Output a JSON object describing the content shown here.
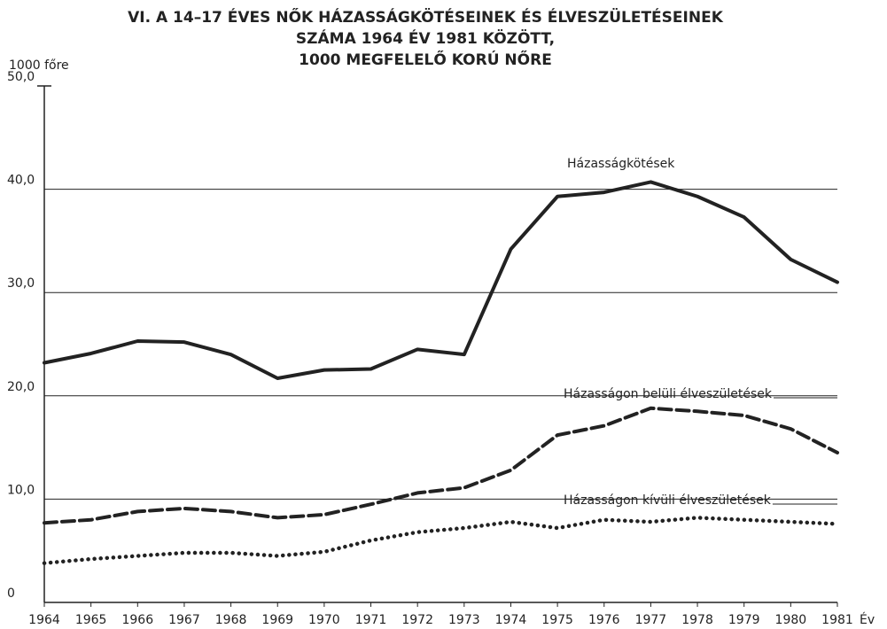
{
  "chart_data": {
    "type": "line",
    "title": [
      "VI. A 14–17 ÉVES NŐK HÁZASSÁGKÖTÉSEINEK ÉS ÉLVESZÜLETÉSEINEK",
      "SZÁMA 1964 ÉV 1981 KÖZÖTT,",
      "1000 MEGFELELŐ KORÚ NŐRE"
    ],
    "y_label": "1000 főre",
    "x_label": "Év",
    "x": [
      1964,
      1965,
      1966,
      1967,
      1968,
      1969,
      1970,
      1971,
      1972,
      1973,
      1974,
      1975,
      1976,
      1977,
      1978,
      1979,
      1980,
      1981
    ],
    "xlim": [
      1964,
      1981
    ],
    "xticks": [
      1964,
      1965,
      1966,
      1967,
      1968,
      1969,
      1970,
      1971,
      1972,
      1973,
      1974,
      1975,
      1976,
      1977,
      1978,
      1979,
      1980,
      1981
    ],
    "ylim": [
      0,
      50
    ],
    "yticks": [
      0,
      {
        "value": 10,
        "label": "10,0"
      },
      {
        "value": 20,
        "label": "20,0"
      },
      {
        "value": 30,
        "label": "30,0"
      },
      {
        "value": 40,
        "label": "40,0"
      },
      {
        "value": 50,
        "label": "50,0"
      }
    ],
    "grid": true,
    "series": [
      {
        "name": "Házasságkötések",
        "color": "#222222",
        "style": "solid",
        "values": [
          23.2,
          24.1,
          25.3,
          25.2,
          24.0,
          21.7,
          22.5,
          22.6,
          24.5,
          24.0,
          34.2,
          39.3,
          39.7,
          40.7,
          39.3,
          37.3,
          33.2,
          31.0
        ]
      },
      {
        "name": "Házasságon belüli élveszületések",
        "color": "#222222",
        "style": "dashed",
        "values": [
          7.7,
          8.0,
          8.8,
          9.1,
          8.8,
          8.2,
          8.5,
          9.5,
          10.6,
          11.1,
          12.8,
          16.2,
          17.1,
          18.8,
          18.5,
          18.1,
          16.8,
          14.5
        ]
      },
      {
        "name": "Házasságon kívüli élveszületések",
        "color": "#222222",
        "style": "dotted",
        "values": [
          3.8,
          4.2,
          4.5,
          4.8,
          4.8,
          4.5,
          4.9,
          6.0,
          6.8,
          7.2,
          7.8,
          7.2,
          8.0,
          7.8,
          8.2,
          8.0,
          7.8,
          7.6
        ]
      }
    ]
  }
}
